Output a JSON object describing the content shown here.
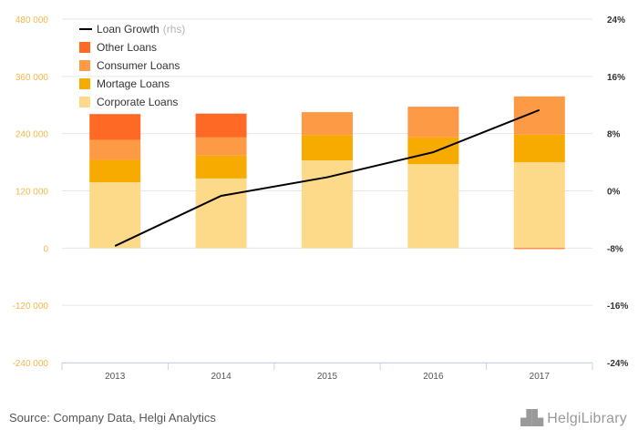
{
  "chart_data": {
    "type": "bar",
    "stacked": true,
    "categories": [
      "2013",
      "2014",
      "2015",
      "2016",
      "2017"
    ],
    "left_axis": {
      "ylim": [
        -240000,
        480000
      ],
      "ticks": [
        -240000,
        -120000,
        0,
        120000,
        240000,
        360000,
        480000
      ],
      "tick_labels": [
        "-240 000",
        "-120 000",
        "0",
        "120 000",
        "240 000",
        "360 000",
        "480 000"
      ]
    },
    "right_axis": {
      "ylim": [
        -24,
        24
      ],
      "ticks": [
        -24,
        -16,
        -8,
        0,
        8,
        16,
        24
      ],
      "tick_labels": [
        "-24%",
        "-16%",
        "-8%",
        "0%",
        "8%",
        "16%",
        "24%"
      ]
    },
    "series": [
      {
        "name": "Corporate Loans",
        "color": "#fdd98a",
        "axis": "left",
        "values": [
          138000,
          146000,
          184000,
          176000,
          180000
        ]
      },
      {
        "name": "Mortage Loans",
        "color": "#f7ab00",
        "axis": "left",
        "values": [
          47000,
          48000,
          53000,
          56000,
          58000
        ]
      },
      {
        "name": "Consumer Loans",
        "color": "#fd9a45",
        "axis": "left",
        "values": [
          42000,
          38000,
          48000,
          62000,
          80000
        ]
      },
      {
        "name": "Other Loans",
        "color": "#fe6a25",
        "axis": "left",
        "values": [
          54000,
          50000,
          0,
          2000,
          -2000
        ]
      },
      {
        "name": "Loan Growth",
        "rhs_tag": "(rhs)",
        "type": "line",
        "color": "#000000",
        "axis": "right",
        "values": [
          -7.7,
          -0.7,
          1.9,
          5.4,
          11.3
        ]
      }
    ],
    "legend_position": "top-left",
    "grid": true
  },
  "footer": {
    "source": "Source: Company Data, Helgi Analytics",
    "brand": "HelgiLibrary",
    "brand_icon": "helgi-skyline-icon"
  }
}
